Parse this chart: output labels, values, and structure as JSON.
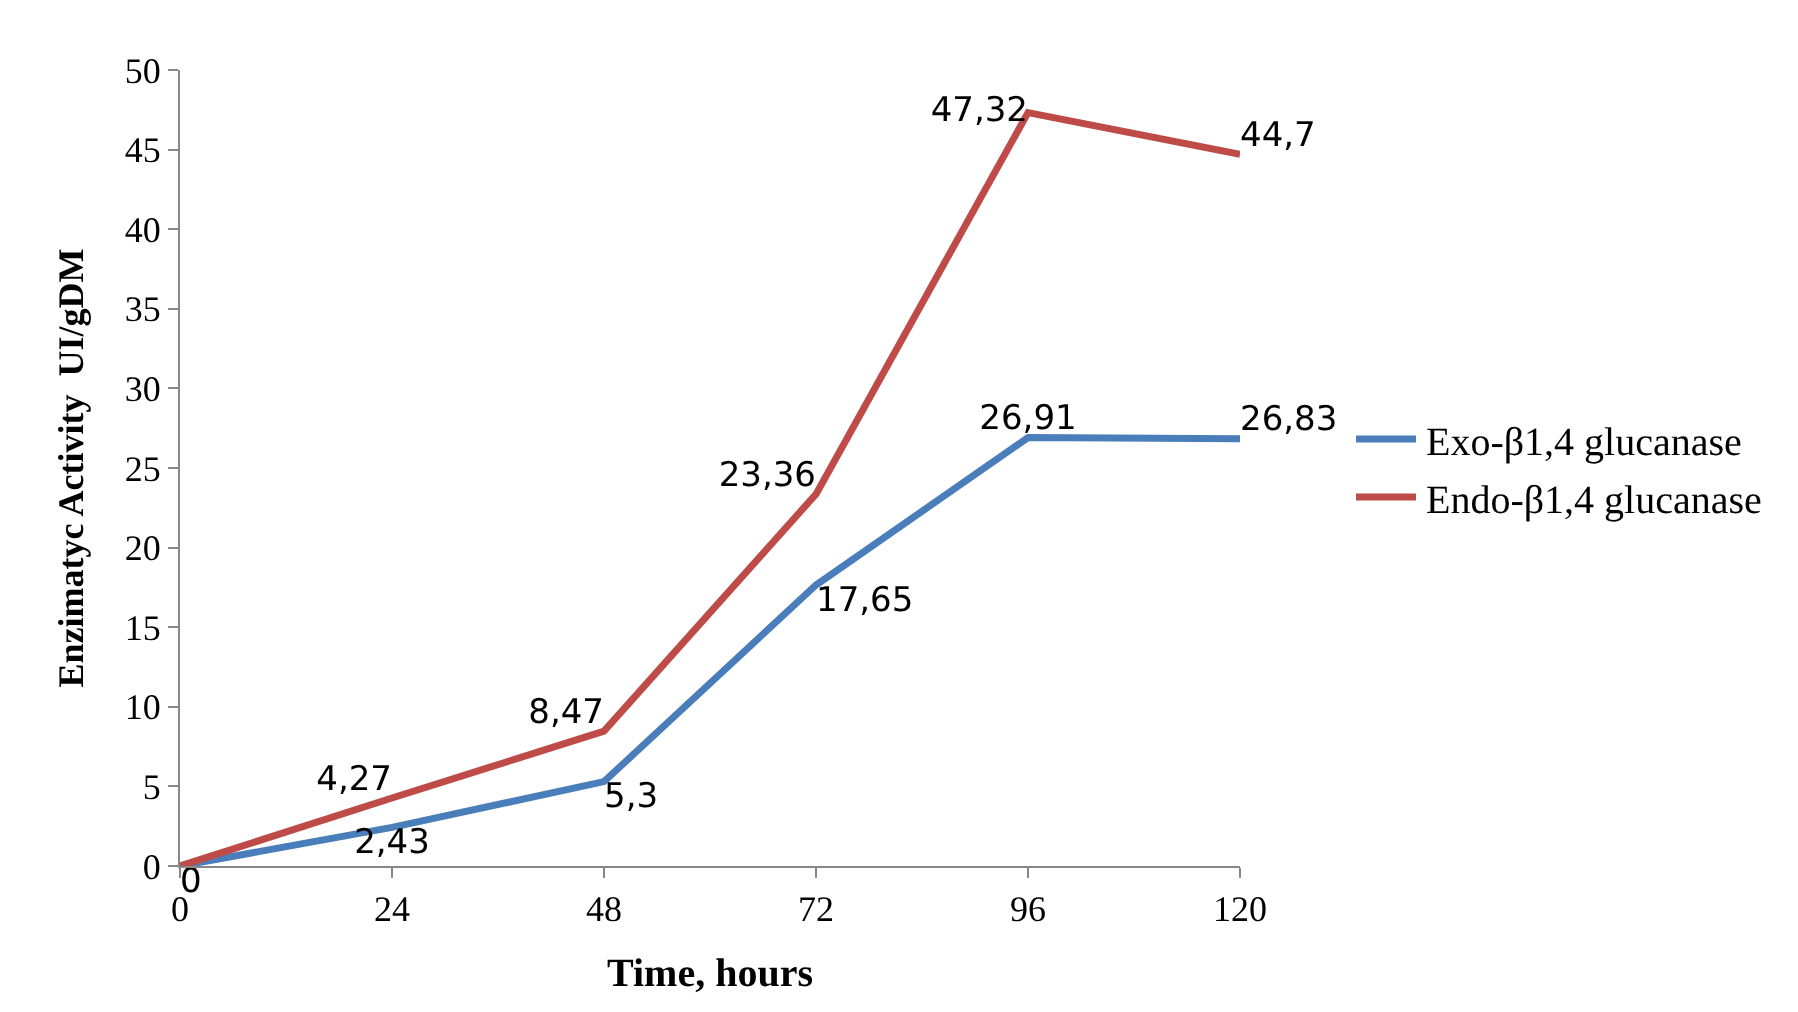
{
  "chart_data": {
    "type": "line",
    "xlabel": "Time, hours",
    "ylabel": "Enzimatyc Activity  UI/gDM",
    "x": [
      0,
      24,
      48,
      72,
      96,
      120
    ],
    "xlim": [
      0,
      120
    ],
    "xticks": [
      0,
      24,
      48,
      72,
      96,
      120
    ],
    "ylim": [
      0,
      50
    ],
    "yticks": [
      0,
      5,
      10,
      15,
      20,
      25,
      30,
      35,
      40,
      45,
      50
    ],
    "legend": "right",
    "marker": "none",
    "line_style": "solid",
    "series": [
      {
        "name": "Exo-β1,4 glucanase",
        "color": "#4a7ebb",
        "values": [
          0,
          2.43,
          5.3,
          17.65,
          26.91,
          26.83
        ],
        "value_labels": [
          "0",
          "2,43",
          "5,3",
          "17,65",
          "26,91",
          "26,83"
        ]
      },
      {
        "name": "Endo-β1,4 glucanase",
        "color": "#be4b48",
        "values": [
          0,
          4.27,
          8.47,
          23.36,
          47.32,
          44.7
        ],
        "value_labels": [
          null,
          "4,27",
          "8,47",
          "23,36",
          "47,32",
          "44,7"
        ]
      }
    ]
  }
}
